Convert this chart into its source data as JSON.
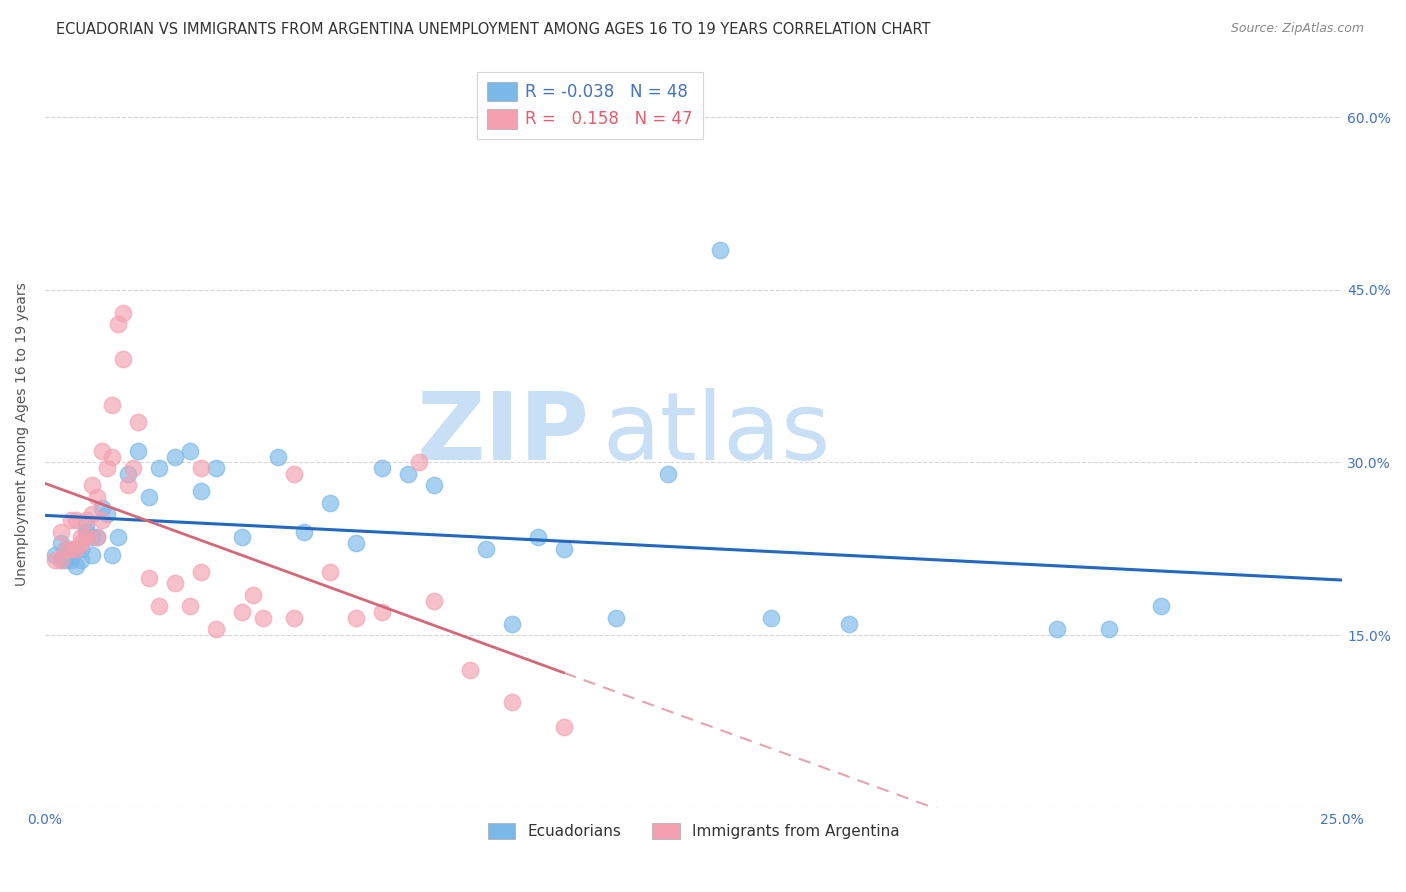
{
  "title": "ECUADORIAN VS IMMIGRANTS FROM ARGENTINA UNEMPLOYMENT AMONG AGES 16 TO 19 YEARS CORRELATION CHART",
  "source": "Source: ZipAtlas.com",
  "ylabel": "Unemployment Among Ages 16 to 19 years",
  "xlim": [
    0.0,
    0.25
  ],
  "ylim": [
    0.0,
    0.65
  ],
  "x_ticks": [
    0.0,
    0.05,
    0.1,
    0.15,
    0.2,
    0.25
  ],
  "x_tick_labels": [
    "0.0%",
    "",
    "",
    "",
    "",
    "25.0%"
  ],
  "y_ticks": [
    0.0,
    0.15,
    0.3,
    0.45,
    0.6
  ],
  "y_tick_labels_right": [
    "",
    "15.0%",
    "30.0%",
    "45.0%",
    "60.0%"
  ],
  "ecu_color": "#7ab8e8",
  "arg_color": "#f4a0b0",
  "ecu_line_color": "#2468c0",
  "arg_line_color": "#d46878",
  "R_ecu": -0.038,
  "N_ecu": 48,
  "R_arg": 0.158,
  "N_arg": 47,
  "ecuadorians_x": [
    0.002,
    0.003,
    0.003,
    0.004,
    0.004,
    0.005,
    0.005,
    0.006,
    0.006,
    0.007,
    0.007,
    0.008,
    0.008,
    0.009,
    0.009,
    0.01,
    0.011,
    0.012,
    0.013,
    0.014,
    0.016,
    0.018,
    0.02,
    0.022,
    0.025,
    0.028,
    0.03,
    0.033,
    0.038,
    0.045,
    0.05,
    0.055,
    0.06,
    0.065,
    0.07,
    0.075,
    0.085,
    0.09,
    0.095,
    0.1,
    0.11,
    0.12,
    0.13,
    0.14,
    0.155,
    0.195,
    0.205,
    0.215
  ],
  "ecuadorians_y": [
    0.22,
    0.23,
    0.215,
    0.215,
    0.225,
    0.215,
    0.22,
    0.225,
    0.21,
    0.215,
    0.225,
    0.245,
    0.24,
    0.22,
    0.235,
    0.235,
    0.26,
    0.255,
    0.22,
    0.235,
    0.29,
    0.31,
    0.27,
    0.295,
    0.305,
    0.31,
    0.275,
    0.295,
    0.235,
    0.305,
    0.24,
    0.265,
    0.23,
    0.295,
    0.29,
    0.28,
    0.225,
    0.16,
    0.235,
    0.225,
    0.165,
    0.29,
    0.485,
    0.165,
    0.16,
    0.155,
    0.155,
    0.175
  ],
  "argentina_x": [
    0.002,
    0.003,
    0.003,
    0.004,
    0.005,
    0.005,
    0.006,
    0.006,
    0.007,
    0.007,
    0.008,
    0.008,
    0.009,
    0.009,
    0.01,
    0.01,
    0.011,
    0.011,
    0.012,
    0.013,
    0.013,
    0.014,
    0.015,
    0.015,
    0.016,
    0.017,
    0.018,
    0.02,
    0.022,
    0.025,
    0.028,
    0.03,
    0.03,
    0.033,
    0.038,
    0.04,
    0.042,
    0.048,
    0.048,
    0.055,
    0.06,
    0.065,
    0.072,
    0.075,
    0.082,
    0.09,
    0.1
  ],
  "argentina_y": [
    0.215,
    0.24,
    0.215,
    0.225,
    0.25,
    0.225,
    0.225,
    0.25,
    0.23,
    0.235,
    0.25,
    0.235,
    0.255,
    0.28,
    0.235,
    0.27,
    0.25,
    0.31,
    0.295,
    0.305,
    0.35,
    0.42,
    0.43,
    0.39,
    0.28,
    0.295,
    0.335,
    0.2,
    0.175,
    0.195,
    0.175,
    0.205,
    0.295,
    0.155,
    0.17,
    0.185,
    0.165,
    0.165,
    0.29,
    0.205,
    0.165,
    0.17,
    0.3,
    0.18,
    0.12,
    0.092,
    0.07
  ],
  "background_color": "#ffffff",
  "grid_color": "#cccccc",
  "watermark_text": "ZIP",
  "watermark_text2": "atlas",
  "watermark_color": "#c8dff5",
  "title_fontsize": 10.5,
  "source_fontsize": 9,
  "ylabel_fontsize": 10,
  "tick_fontsize": 10,
  "legend_fontsize": 12
}
